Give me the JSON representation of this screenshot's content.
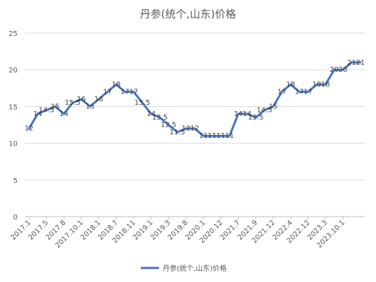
{
  "chart_data": {
    "type": "line",
    "title": "丹参(统个,山东)价格",
    "xlabel": "",
    "ylabel": "",
    "ylim": [
      0,
      25
    ],
    "yticks": [
      0,
      5,
      10,
      15,
      20,
      25
    ],
    "grid": true,
    "legend_position": "bottom",
    "x_tick_labels": [
      "2017.1",
      "2017.5",
      "2017.8",
      "2017.10.1",
      "2018.1",
      "2018.7",
      "2018.11",
      "2019.1",
      "2019.3",
      "2019.8",
      "2020.1",
      "2020.12",
      "2021.7",
      "2021.9",
      "2021.12",
      "2022.4",
      "2022.12",
      "2023.3",
      "2023.10.1"
    ],
    "series": [
      {
        "name": "丹参(统个,山东)价格",
        "color": "#4472C4",
        "values": [
          12,
          14,
          14.5,
          15,
          14,
          15.5,
          16,
          15,
          16,
          17,
          18,
          17,
          17,
          15.5,
          14,
          13.5,
          12.5,
          11.5,
          12,
          12,
          11,
          11,
          11,
          11,
          14,
          14,
          13.5,
          14.5,
          15,
          17,
          18,
          17,
          17,
          18,
          18,
          20,
          20,
          21,
          21
        ],
        "labels": [
          "12",
          "14",
          "14.5",
          "15",
          "14",
          "15.5",
          "16",
          "15",
          "16",
          "17",
          "18",
          "17",
          "17",
          "15.5",
          "14",
          "13.5",
          "12.5",
          "11.5",
          "12",
          "12",
          "11",
          "11",
          "11",
          "11",
          "14",
          "14",
          "13.5",
          "14.5",
          "15",
          "17",
          "18",
          "17",
          "17",
          "18",
          "18",
          "20",
          "20",
          "21",
          "21"
        ]
      }
    ]
  }
}
